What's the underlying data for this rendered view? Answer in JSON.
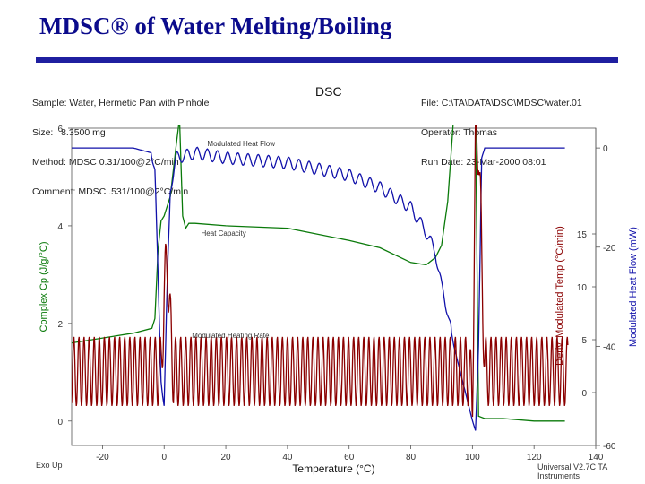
{
  "slide": {
    "title": "MDSC® of Water Melting/Boiling"
  },
  "header": {
    "left_lines": [
      "Sample: Water, Hermetic Pan with Pinhole",
      "Size:   8.3500 mg",
      "Method: MDSC 0.31/100@2°C/min",
      "Comment: MDSC .531/100@2°C/min"
    ],
    "right_lines": [
      "File: C:\\TA\\DATA\\DSC\\MDSC\\water.01",
      "Operator: Thomas",
      "Run Date: 23-Mar-2000 08:01"
    ]
  },
  "footer": {
    "left": "Exo Up",
    "right": "Universal V2.7C TA Instruments"
  },
  "chart_data": {
    "type": "line",
    "title": "DSC",
    "xlabel": "Temperature (°C)",
    "xlim": [
      -30,
      140
    ],
    "x_ticks": [
      -20,
      0,
      20,
      40,
      60,
      80,
      100,
      120,
      140
    ],
    "y_axes": [
      {
        "id": "cp",
        "label": "Complex Cp (J/g/°C)",
        "side": "left",
        "color": "#0a7a0a",
        "lim": [
          -0.5,
          6
        ],
        "ticks": [
          0,
          2,
          4,
          6
        ]
      },
      {
        "id": "rate",
        "label": "Deriv. Modulated Temp (°C/min)",
        "side": "right-inner",
        "color": "#8b0000",
        "lim": [
          -5,
          25
        ],
        "ticks": [
          0,
          5,
          10,
          15
        ]
      },
      {
        "id": "hf",
        "label": "Modulated Heat Flow (mW)",
        "side": "right-outer",
        "color": "#1111aa",
        "lim": [
          -60,
          4
        ],
        "ticks": [
          0,
          -20,
          -40,
          -60
        ]
      }
    ],
    "annotations": [
      {
        "text": "Modulated Heat Flow",
        "x": 14,
        "y": 0.4,
        "axis": "hf"
      },
      {
        "text": "Heat Capacity",
        "x": 12,
        "y": 3.8,
        "axis": "cp"
      },
      {
        "text": "Modulated Heating Rate",
        "x": 9,
        "y": 1.7,
        "axis": "cp"
      }
    ],
    "series": [
      {
        "name": "Heat Capacity",
        "axis": "cp",
        "color": "#0a7a0a",
        "x": [
          -30,
          -10,
          -4,
          -3,
          -2,
          -1,
          0,
          2,
          4,
          5,
          6,
          7,
          8,
          10,
          20,
          40,
          60,
          70,
          80,
          85,
          88,
          90,
          92,
          94,
          96,
          98,
          100,
          101,
          102,
          104,
          110,
          120,
          130
        ],
        "y": [
          1.6,
          1.8,
          1.9,
          2.1,
          3.5,
          4.1,
          4.2,
          4.6,
          5.7,
          6.2,
          4.2,
          3.95,
          4.05,
          4.05,
          4.0,
          3.95,
          3.7,
          3.55,
          3.25,
          3.2,
          3.35,
          3.6,
          4.5,
          6.3,
          6.3,
          6.3,
          6.3,
          6.3,
          0.1,
          0.05,
          0.05,
          0.0,
          0.0
        ]
      },
      {
        "name": "Modulated Heat Flow",
        "axis": "hf",
        "color": "#1111aa",
        "osc_amplitude": 1.2,
        "osc_period": 3.3,
        "osc_range": [
          -4,
          93
        ],
        "x": [
          -30,
          -10,
          -4,
          -3,
          -2,
          -1,
          0,
          1,
          2,
          4,
          10,
          20,
          40,
          60,
          70,
          80,
          85,
          88,
          90,
          92,
          94,
          96,
          98,
          100,
          101,
          102,
          103,
          104,
          106,
          110,
          120,
          130
        ],
        "y": [
          0,
          0,
          -1,
          -5,
          -26,
          -46,
          -52,
          -28,
          -8,
          -2,
          -1,
          -2,
          -3,
          -5.5,
          -8,
          -12,
          -17,
          -21,
          -28,
          -33,
          -40,
          -45,
          -50,
          -55,
          -57,
          -40,
          -2,
          0,
          0,
          0,
          0,
          0
        ]
      },
      {
        "name": "Modulated Heating Rate",
        "axis": "rate",
        "color": "#8b0000",
        "mean": 2.0,
        "amplitude": 3.3,
        "period": 1.65,
        "range": [
          -30,
          131
        ],
        "spike": {
          "x": [
            -1,
            0,
            1,
            2,
            3
          ],
          "y": [
            2,
            9,
            13,
            6,
            2
          ]
        },
        "spike2": {
          "x": [
            99,
            100,
            101,
            102,
            103,
            104
          ],
          "y": [
            2,
            -1,
            23,
            24,
            13,
            2
          ]
        }
      }
    ]
  }
}
